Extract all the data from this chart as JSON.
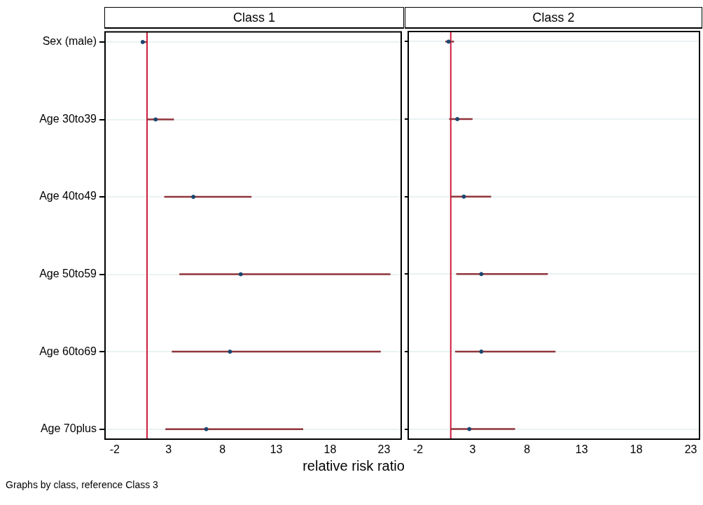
{
  "chart_data": [
    {
      "type": "scatter",
      "title": "Class 1",
      "xlabel": "relative risk ratio",
      "annotations": [
        "Graphs by class, reference Class 3"
      ],
      "orientation": "horizontal",
      "categories": [
        "Sex (male)",
        "Age 30to39",
        "Age 40to49",
        "Age 50to59",
        "Age 60to69",
        "Age 70plus"
      ],
      "series": [
        {
          "color": "#1a476f",
          "values": [
            0.6,
            1.8,
            5.3,
            9.7,
            8.7,
            6.5
          ],
          "errors": [
            [
              0.45,
              0.95
            ],
            [
              1.0,
              3.5
            ],
            [
              2.6,
              10.7
            ],
            [
              4.0,
              23.6
            ],
            [
              3.3,
              22.7
            ],
            [
              2.7,
              15.5
            ]
          ]
        }
      ],
      "xlim": [
        -2.9,
        24.6
      ],
      "xticks": [
        -2,
        3,
        8,
        13,
        18,
        23
      ],
      "ref_lines": [
        {
          "axis": "x",
          "value": 1,
          "color": "#d01c3c"
        }
      ],
      "grid": "y",
      "marker": "circle",
      "legend": false
    },
    {
      "type": "scatter",
      "title": "Class 2",
      "orientation": "horizontal",
      "categories": [
        null,
        null,
        null,
        null,
        null,
        null
      ],
      "series": [
        {
          "color": "#1a476f",
          "values": [
            0.8,
            1.6,
            2.2,
            3.8,
            3.8,
            2.7
          ],
          "errors": [
            [
              0.5,
              1.3
            ],
            [
              0.85,
              3.0
            ],
            [
              1.0,
              4.7
            ],
            [
              1.5,
              9.9
            ],
            [
              1.4,
              10.6
            ],
            [
              1.0,
              6.9
            ]
          ]
        }
      ],
      "xlim": [
        -2.9,
        23.8
      ],
      "xticks": [
        -2,
        3,
        8,
        13,
        18,
        23
      ],
      "ref_lines": [
        {
          "axis": "x",
          "value": 1,
          "color": "#d01c3c"
        }
      ],
      "grid": "y",
      "marker": "circle",
      "legend": false,
      "tick_labels": "x"
    }
  ]
}
